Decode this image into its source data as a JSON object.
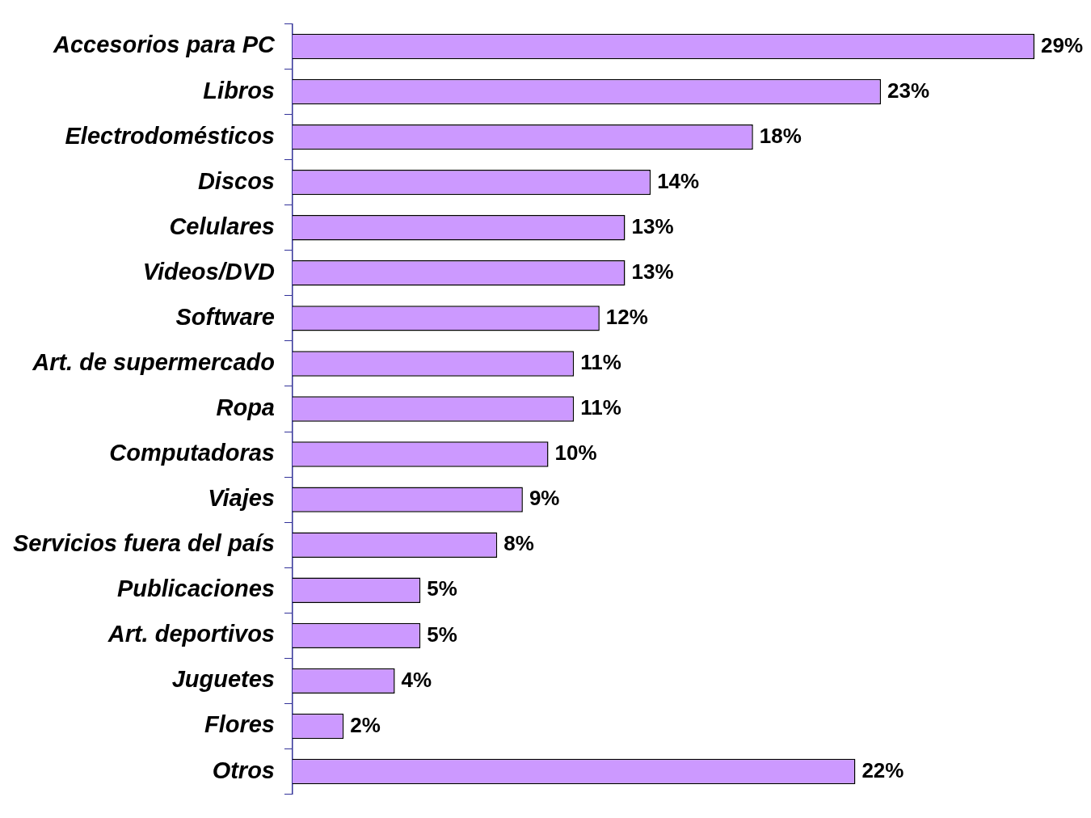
{
  "chart_data": {
    "type": "bar",
    "orientation": "horizontal",
    "color": "#cc99ff",
    "categories": [
      "Accesorios para PC",
      "Libros",
      "Electrodomésticos",
      "Discos",
      "Celulares",
      "Videos/DVD",
      "Software",
      "Art. de supermercado",
      "Ropa",
      "Computadoras",
      "Viajes",
      "Servicios fuera del país",
      "Publicaciones",
      "Art. deportivos",
      "Juguetes",
      "Flores",
      "Otros"
    ],
    "values": [
      29,
      23,
      18,
      14,
      13,
      13,
      12,
      11,
      11,
      10,
      9,
      8,
      5,
      5,
      4,
      2,
      22
    ],
    "value_labels": [
      "29%",
      "23%",
      "18%",
      "14%",
      "13%",
      "13%",
      "12%",
      "11%",
      "11%",
      "10%",
      "9%",
      "8%",
      "5%",
      "5%",
      "4%",
      "2%",
      "22%"
    ],
    "grid": false,
    "legend": false,
    "tick_labels": "y"
  }
}
